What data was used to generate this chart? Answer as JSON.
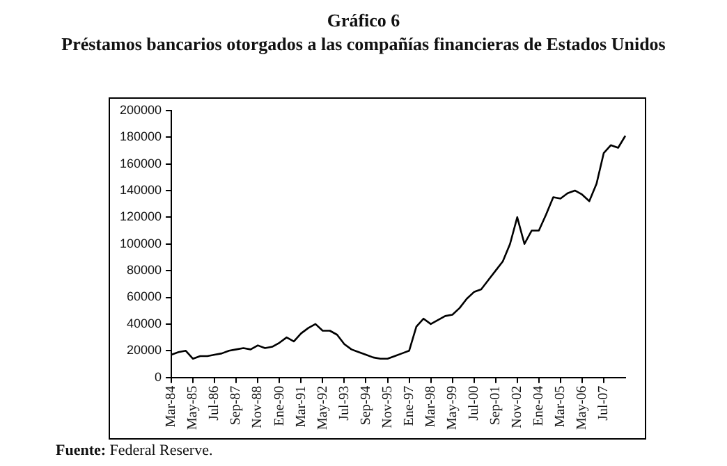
{
  "chart_data": {
    "type": "line",
    "title": "Gráfico 6",
    "subtitle": "Préstamos bancarios otorgados a las compañías financieras de Estados Unidos",
    "categories": [
      "Mar-84",
      null,
      null,
      "May-85",
      null,
      null,
      "Jul-86",
      null,
      null,
      "Sep-87",
      null,
      null,
      "Nov-88",
      null,
      null,
      "Ene-90",
      null,
      null,
      "Mar-91",
      null,
      null,
      "May-92",
      null,
      null,
      "Jul-93",
      null,
      null,
      "Sep-94",
      null,
      null,
      "Nov-95",
      null,
      null,
      "Ene-97",
      null,
      null,
      "Mar-98",
      null,
      null,
      "May-99",
      null,
      null,
      "Jul-00",
      null,
      null,
      "Sep-01",
      null,
      null,
      "Nov-02",
      null,
      null,
      "Ene-04",
      null,
      null,
      "Mar-05",
      null,
      null,
      "May-06",
      null,
      null,
      "Jul-07",
      null,
      null,
      null
    ],
    "series": [
      {
        "color": "#000000",
        "values": [
          17000,
          19000,
          20000,
          14000,
          16000,
          16000,
          17000,
          18000,
          20000,
          21000,
          22000,
          21000,
          24000,
          22000,
          23000,
          26000,
          30000,
          27000,
          33000,
          37000,
          40000,
          35000,
          35000,
          32000,
          25000,
          21000,
          19000,
          17000,
          15000,
          14000,
          14000,
          16000,
          18000,
          20000,
          38000,
          44000,
          40000,
          43000,
          46000,
          47000,
          52000,
          59000,
          64000,
          66000,
          73000,
          80000,
          87000,
          100000,
          120000,
          100000,
          110000,
          110000,
          122000,
          135000,
          134000,
          138000,
          140000,
          137000,
          132000,
          145000,
          168000,
          174000,
          172000,
          181000
        ]
      }
    ],
    "ylim": [
      0,
      200000
    ],
    "yticks": [
      0,
      20000,
      40000,
      60000,
      80000,
      100000,
      120000,
      140000,
      160000,
      180000,
      200000
    ],
    "grid": false,
    "legend": false,
    "marker": "none",
    "line_style": "solid",
    "annotations": [
      "Fuente: Federal Reserve."
    ]
  }
}
